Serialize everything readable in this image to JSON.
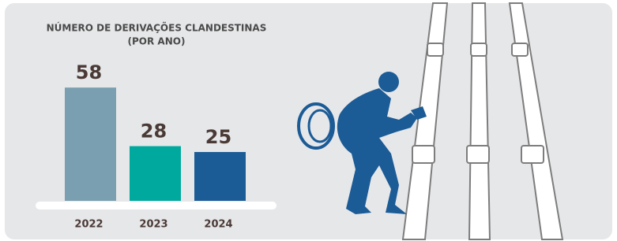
{
  "chart_data": {
    "type": "bar",
    "title": "NÚMERO DE DERIVAÇÕES CLANDESTINAS",
    "subtitle": "(POR ANO)",
    "categories": [
      "2022",
      "2023",
      "2024"
    ],
    "values": [
      58,
      28,
      25
    ],
    "colors": [
      "#7a9fb0",
      "#00a99d",
      "#1b5b96"
    ]
  }
}
